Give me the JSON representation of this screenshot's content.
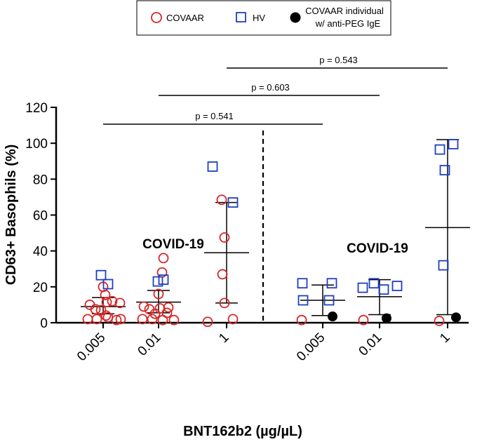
{
  "chart_data": {
    "type": "scatter",
    "ylabel": "CD63+ Basophils (%)",
    "xlabel": "BNT162b2 (µg/µL)",
    "ylim": [
      0,
      120
    ],
    "yticks": [
      0,
      20,
      40,
      60,
      80,
      100,
      120
    ],
    "groups": [
      "COVID-19",
      "COVID-19"
    ],
    "categories": [
      "0.005",
      "0.01",
      "1",
      "0.005",
      "0.01",
      "1"
    ],
    "legend": {
      "covaar": "COVAAR",
      "hv": "HV",
      "peg_line1": "COVAAR individual",
      "peg_line2": "w/ anti-PEG IgE"
    },
    "colors": {
      "covaar": "#d62728",
      "hv": "#1f3fbf",
      "peg": "#000000",
      "axis": "#000000"
    },
    "series": [
      {
        "name": "COVAAR",
        "marker": "circle",
        "points": [
          {
            "c": 0,
            "o": -11,
            "y": 7.5
          },
          {
            "c": 0,
            "o": 0,
            "y": 20
          },
          {
            "c": 0,
            "o": 3,
            "y": 15.5
          },
          {
            "c": 0,
            "o": 5,
            "y": 11.5
          },
          {
            "c": 0,
            "o": 13,
            "y": 12
          },
          {
            "c": 0,
            "o": 24,
            "y": 11
          },
          {
            "c": 0,
            "o": -19,
            "y": 10
          },
          {
            "c": 0,
            "o": -3,
            "y": 7
          },
          {
            "c": 0,
            "o": 4,
            "y": 4
          },
          {
            "c": 0,
            "o": -22,
            "y": 2
          },
          {
            "c": 0,
            "o": -9,
            "y": 2
          },
          {
            "c": 0,
            "o": 7,
            "y": 3
          },
          {
            "c": 0,
            "o": 19,
            "y": 1.5
          },
          {
            "c": 0,
            "o": 25,
            "y": 2
          },
          {
            "c": 1,
            "o": 7,
            "y": 36
          },
          {
            "c": 1,
            "o": 5,
            "y": 28
          },
          {
            "c": 1,
            "o": 0,
            "y": 16
          },
          {
            "c": 1,
            "o": -21,
            "y": 9
          },
          {
            "c": 1,
            "o": 14,
            "y": 8.5
          },
          {
            "c": 1,
            "o": -13,
            "y": 7.5
          },
          {
            "c": 1,
            "o": 2,
            "y": 8
          },
          {
            "c": 1,
            "o": -5,
            "y": 5
          },
          {
            "c": 1,
            "o": 12,
            "y": 5.5
          },
          {
            "c": 1,
            "o": -23,
            "y": 2
          },
          {
            "c": 1,
            "o": -9,
            "y": 2
          },
          {
            "c": 1,
            "o": 6,
            "y": 1.5
          },
          {
            "c": 1,
            "o": 22,
            "y": 1.5
          },
          {
            "c": 2,
            "o": -7,
            "y": 68.5
          },
          {
            "c": 2,
            "o": -3,
            "y": 47.5
          },
          {
            "c": 2,
            "o": -6,
            "y": 27
          },
          {
            "c": 2,
            "o": -3,
            "y": 11
          },
          {
            "c": 2,
            "o": -27,
            "y": 0.5
          },
          {
            "c": 2,
            "o": 9,
            "y": 2
          },
          {
            "c": 3,
            "o": -30,
            "y": 1.5
          },
          {
            "c": 4,
            "o": -23,
            "y": 1.5
          },
          {
            "c": 5,
            "o": -12,
            "y": 1
          }
        ]
      },
      {
        "name": "HV",
        "marker": "square",
        "points": [
          {
            "c": 0,
            "o": -3,
            "y": 26.5
          },
          {
            "c": 0,
            "o": 7,
            "y": 21.5
          },
          {
            "c": 1,
            "o": -1,
            "y": 23
          },
          {
            "c": 1,
            "o": 7,
            "y": 24
          },
          {
            "c": 2,
            "o": -20,
            "y": 87
          },
          {
            "c": 2,
            "o": 9,
            "y": 67
          },
          {
            "c": 3,
            "o": -29,
            "y": 22
          },
          {
            "c": 3,
            "o": 13,
            "y": 22
          },
          {
            "c": 3,
            "o": -28,
            "y": 12.5
          },
          {
            "c": 3,
            "o": 9,
            "y": 12.5
          },
          {
            "c": 4,
            "o": -24,
            "y": 19.5
          },
          {
            "c": 4,
            "o": -8,
            "y": 22
          },
          {
            "c": 4,
            "o": 6,
            "y": 18.5
          },
          {
            "c": 4,
            "o": 25,
            "y": 20.5
          },
          {
            "c": 5,
            "o": -11,
            "y": 96.5
          },
          {
            "c": 5,
            "o": 8,
            "y": 99.5
          },
          {
            "c": 5,
            "o": -4,
            "y": 85
          },
          {
            "c": 5,
            "o": -6,
            "y": 32
          }
        ]
      },
      {
        "name": "COVAAR individual w/ anti-PEG IgE",
        "marker": "filled-circle",
        "points": [
          {
            "c": 3,
            "o": 14,
            "y": 3.5
          },
          {
            "c": 4,
            "o": 10,
            "y": 2.5
          },
          {
            "c": 5,
            "o": 12,
            "y": 3
          }
        ]
      }
    ],
    "summary": [
      {
        "c": 0,
        "mean": 9,
        "low": 5,
        "high": 14
      },
      {
        "c": 1,
        "mean": 11.5,
        "low": 5.5,
        "high": 18
      },
      {
        "c": 2,
        "mean": 39,
        "low": 11,
        "high": 67
      },
      {
        "c": 3,
        "mean": 12.5,
        "low": 4,
        "high": 21
      },
      {
        "c": 4,
        "mean": 14.5,
        "low": 4.5,
        "high": 24
      },
      {
        "c": 5,
        "mean": 53,
        "low": 4.5,
        "high": 102
      }
    ],
    "comparisons": [
      {
        "from": 0,
        "to": 3,
        "label": "p = 0.541"
      },
      {
        "from": 1,
        "to": 4,
        "label": "p = 0.603"
      },
      {
        "from": 2,
        "to": 5,
        "label": "p = 0.543"
      }
    ]
  }
}
